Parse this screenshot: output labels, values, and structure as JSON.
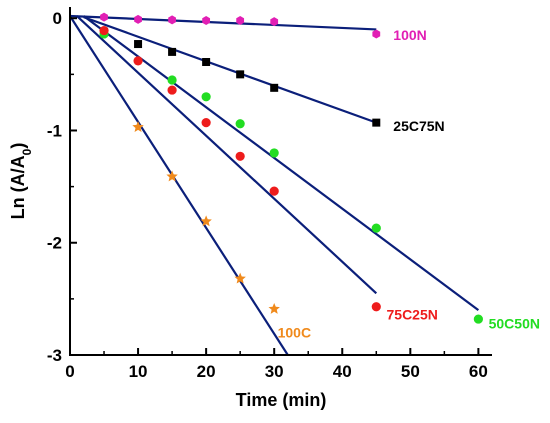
{
  "chart_data": {
    "type": "scatter",
    "xlabel": "Time (min)",
    "ylabel_main": "Ln (A/A",
    "ylabel_sub": "0",
    "ylabel_close": ")",
    "xlim": [
      0,
      62
    ],
    "ylim": [
      -3,
      0.1
    ],
    "x_ticks": [
      "0",
      "10",
      "20",
      "30",
      "40",
      "50",
      "60"
    ],
    "y_ticks": [
      "0",
      "-1",
      "-2",
      "-3"
    ],
    "line_color": "#0b1f7a",
    "series": [
      {
        "name": "100N",
        "color": "#e11fb4",
        "marker": "hexagon",
        "points": [
          [
            5,
            0.01
          ],
          [
            10,
            -0.01
          ],
          [
            15,
            -0.015
          ],
          [
            20,
            -0.02
          ],
          [
            25,
            -0.02
          ],
          [
            30,
            -0.03
          ],
          [
            45,
            -0.14
          ]
        ],
        "fit": [
          [
            0,
            0.02
          ],
          [
            45,
            -0.1
          ]
        ]
      },
      {
        "name": "25C75N",
        "color": "#000000",
        "marker": "square",
        "points": [
          [
            5,
            -0.12
          ],
          [
            10,
            -0.23
          ],
          [
            15,
            -0.3
          ],
          [
            20,
            -0.39
          ],
          [
            25,
            -0.5
          ],
          [
            30,
            -0.62
          ],
          [
            45,
            -0.93
          ]
        ],
        "fit": [
          [
            2,
            0.01
          ],
          [
            45,
            -0.93
          ]
        ]
      },
      {
        "name": "50C50N",
        "color": "#22dd22",
        "marker": "circle",
        "points": [
          [
            5,
            -0.14
          ],
          [
            15,
            -0.55
          ],
          [
            20,
            -0.7
          ],
          [
            25,
            -0.94
          ],
          [
            30,
            -1.2
          ],
          [
            45,
            -1.87
          ],
          [
            60,
            -2.68
          ]
        ],
        "fit": [
          [
            2,
            0.02
          ],
          [
            60,
            -2.6
          ]
        ]
      },
      {
        "name": "75C25N",
        "color": "#ee1c1c",
        "marker": "circle",
        "points": [
          [
            5,
            -0.11
          ],
          [
            10,
            -0.38
          ],
          [
            15,
            -0.64
          ],
          [
            20,
            -0.93
          ],
          [
            25,
            -1.23
          ],
          [
            30,
            -1.54
          ],
          [
            45,
            -2.57
          ]
        ],
        "fit": [
          [
            1,
            0.02
          ],
          [
            45,
            -2.45
          ]
        ]
      },
      {
        "name": "100C",
        "color": "#f08a1c",
        "marker": "star",
        "points": [
          [
            10,
            -0.97
          ],
          [
            15,
            -1.41
          ],
          [
            20,
            -1.81
          ],
          [
            25,
            -2.32
          ],
          [
            30,
            -2.59
          ]
        ],
        "fit": [
          [
            0,
            0.02
          ],
          [
            32,
            -3
          ]
        ]
      }
    ],
    "labels": [
      {
        "text": "100N",
        "x": 47.5,
        "y": -0.15,
        "color": "#e11fb4"
      },
      {
        "text": "25C75N",
        "x": 47.5,
        "y": -0.96,
        "color": "#000000"
      },
      {
        "text": "50C50N",
        "x": 61.5,
        "y": -2.72,
        "color": "#22dd22"
      },
      {
        "text": "75C25N",
        "x": 46.5,
        "y": -2.64,
        "color": "#ee1c1c"
      },
      {
        "text": "100C",
        "x": 30.5,
        "y": -2.8,
        "color": "#f08a1c"
      }
    ]
  }
}
